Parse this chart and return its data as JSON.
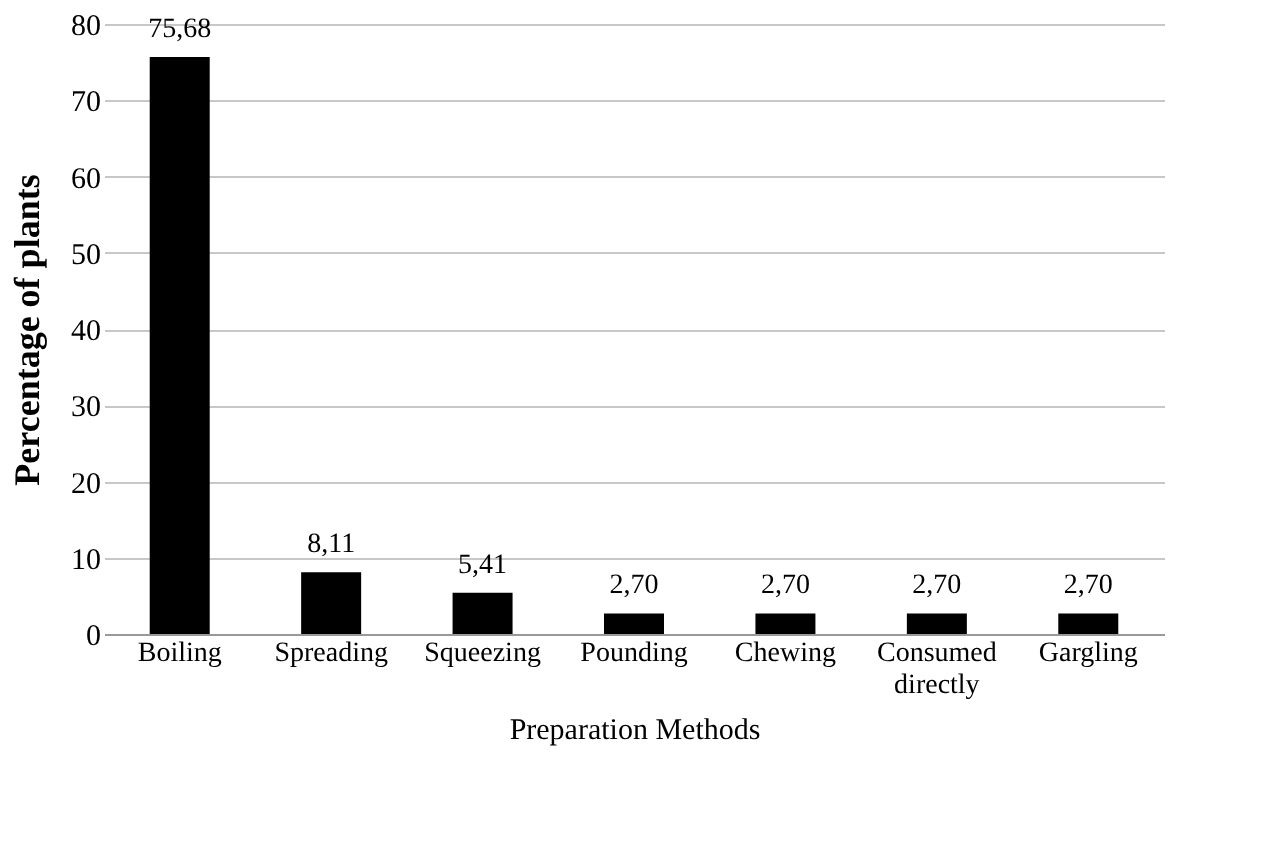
{
  "chart_data": {
    "type": "bar",
    "xlabel": "Preparation Methods",
    "ylabel": "Percentage of plants",
    "categories": [
      "Boiling",
      "Spreading",
      "Squeezing",
      "Pounding",
      "Chewing",
      "Consumed directly",
      "Gargling"
    ],
    "values": [
      75.68,
      8.11,
      5.41,
      2.7,
      2.7,
      2.7,
      2.7
    ],
    "value_labels": [
      "75,68",
      "8,11",
      "5,41",
      "2,70",
      "2,70",
      "2,70",
      "2,70"
    ],
    "color": "#000000",
    "ylim": [
      0,
      80
    ],
    "yticks": [
      0,
      10,
      20,
      30,
      40,
      50,
      60,
      70,
      80
    ],
    "grid": "y"
  }
}
